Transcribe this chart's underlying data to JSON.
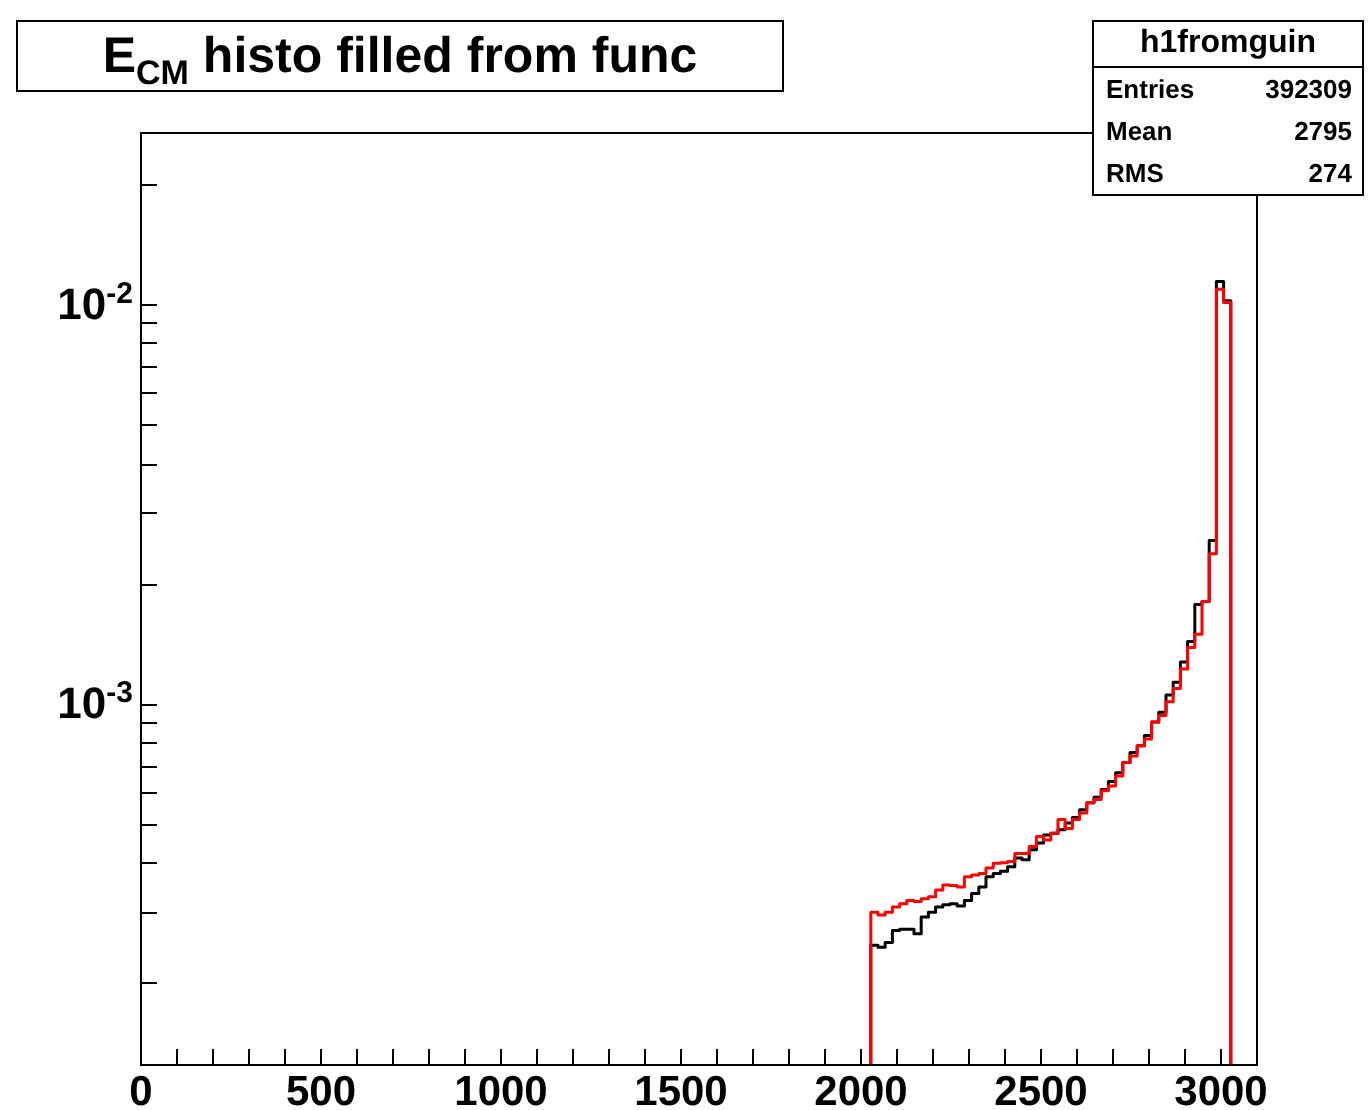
{
  "chart_data": {
    "type": "histogram",
    "title": "E$_{CM}$ histo filled from func",
    "annotations": [
      "h1fromguin",
      "Entries 392309",
      "Mean 2795",
      "RMS 274"
    ],
    "bins": [
      2030,
      2050,
      2070,
      2090,
      2110,
      2130,
      2150,
      2170,
      2190,
      2210,
      2230,
      2250,
      2270,
      2290,
      2310,
      2330,
      2350,
      2370,
      2390,
      2410,
      2430,
      2450,
      2470,
      2490,
      2510,
      2530,
      2550,
      2570,
      2590,
      2610,
      2630,
      2650,
      2670,
      2690,
      2710,
      2730,
      2750,
      2770,
      2790,
      2810,
      2830,
      2850,
      2870,
      2890,
      2910,
      2930,
      2950,
      2970,
      2990,
      3010,
      3030
    ],
    "series": [
      {
        "color": "#000000",
        "values": [
          0.000248,
          0.000245,
          0.000252,
          0.00027,
          0.000272,
          0.000272,
          0.000265,
          0.000292,
          0.0003,
          0.000309,
          0.000313,
          0.000315,
          0.000311,
          0.000321,
          0.000334,
          0.000347,
          0.000368,
          0.000375,
          0.00038,
          0.00039,
          0.00041,
          0.000406,
          0.00043,
          0.000447,
          0.000468,
          0.000473,
          0.000483,
          0.000502,
          0.000518,
          0.000542,
          0.000564,
          0.000582,
          0.000609,
          0.000638,
          0.000671,
          0.000711,
          0.000754,
          0.000784,
          0.000831,
          0.000898,
          0.000951,
          0.00105,
          0.00113,
          0.00127,
          0.00143,
          0.00177,
          0.0018,
          0.00256,
          0.0114,
          0.0102
        ]
      },
      {
        "color": "#ff0000",
        "values": [
          0.0003,
          0.000295,
          0.0003,
          0.000309,
          0.000315,
          0.000321,
          0.000319,
          0.000324,
          0.000328,
          0.000341,
          0.000351,
          0.00035,
          0.000347,
          0.000368,
          0.000372,
          0.000375,
          0.000387,
          0.000398,
          0.000399,
          0.000402,
          0.000421,
          0.000421,
          0.000438,
          0.000464,
          0.000455,
          0.000473,
          0.000512,
          0.000486,
          0.000512,
          0.000532,
          0.000564,
          0.000575,
          0.000604,
          0.000621,
          0.000658,
          0.000711,
          0.000739,
          0.000784,
          0.000815,
          0.000898,
          0.000933,
          0.00101,
          0.00109,
          0.00122,
          0.00138,
          0.00149,
          0.0018,
          0.00237,
          0.0109,
          0.0101
        ]
      }
    ],
    "xlim": [
      0,
      3100
    ],
    "xticks": [
      0,
      {
        "value": 100,
        "label": null
      },
      {
        "value": 200,
        "label": null
      },
      {
        "value": 300,
        "label": null
      },
      {
        "value": 400,
        "label": null
      },
      500,
      {
        "value": 600,
        "label": null
      },
      {
        "value": 700,
        "label": null
      },
      {
        "value": 800,
        "label": null
      },
      {
        "value": 900,
        "label": null
      },
      1000,
      {
        "value": 1100,
        "label": null
      },
      {
        "value": 1200,
        "label": null
      },
      {
        "value": 1300,
        "label": null
      },
      {
        "value": 1400,
        "label": null
      },
      1500,
      {
        "value": 1600,
        "label": null
      },
      {
        "value": 1700,
        "label": null
      },
      {
        "value": 1800,
        "label": null
      },
      {
        "value": 1900,
        "label": null
      },
      2000,
      {
        "value": 2100,
        "label": null
      },
      {
        "value": 2200,
        "label": null
      },
      {
        "value": 2300,
        "label": null
      },
      {
        "value": 2400,
        "label": null
      },
      2500,
      {
        "value": 2600,
        "label": null
      },
      {
        "value": 2700,
        "label": null
      },
      {
        "value": 2800,
        "label": null
      },
      {
        "value": 2900,
        "label": null
      },
      3000
    ],
    "ylim": [
      0.000125,
      0.027
    ],
    "yticks": [
      {
        "value": 0.0002,
        "label": null
      },
      {
        "value": 0.0003,
        "label": null
      },
      {
        "value": 0.0004,
        "label": null
      },
      {
        "value": 0.0005,
        "label": null
      },
      {
        "value": 0.0006,
        "label": null
      },
      {
        "value": 0.0007,
        "label": null
      },
      {
        "value": 0.0008,
        "label": null
      },
      {
        "value": 0.0009,
        "label": null
      },
      {
        "value": 0.001,
        "label": "10$^{-3}$"
      },
      {
        "value": 0.002,
        "label": null
      },
      {
        "value": 0.003,
        "label": null
      },
      {
        "value": 0.004,
        "label": null
      },
      {
        "value": 0.005,
        "label": null
      },
      {
        "value": 0.006,
        "label": null
      },
      {
        "value": 0.007,
        "label": null
      },
      {
        "value": 0.008,
        "label": null
      },
      {
        "value": 0.009,
        "label": null
      },
      {
        "value": 0.01,
        "label": "10$^{-2}$"
      },
      {
        "value": 0.02,
        "label": null
      }
    ],
    "log": true,
    "grid": false
  }
}
